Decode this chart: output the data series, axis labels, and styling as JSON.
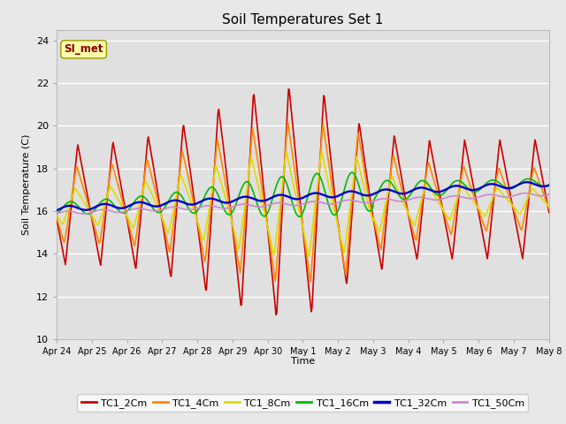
{
  "title": "Soil Temperatures Set 1",
  "xlabel": "Time",
  "ylabel": "Soil Temperature (C)",
  "ylim": [
    10,
    24.5
  ],
  "yticks": [
    10,
    12,
    14,
    16,
    18,
    20,
    22,
    24
  ],
  "x_labels": [
    "Apr 24",
    "Apr 25",
    "Apr 26",
    "Apr 27",
    "Apr 28",
    "Apr 29",
    "Apr 30",
    "May 1",
    "May 2",
    "May 3",
    "May 4",
    "May 5",
    "May 6",
    "May 7",
    "May 8"
  ],
  "annotation": "SI_met",
  "line_colors": {
    "TC1_2Cm": "#cc0000",
    "TC1_4Cm": "#ff8800",
    "TC1_8Cm": "#dddd00",
    "TC1_16Cm": "#00bb00",
    "TC1_32Cm": "#0000cc",
    "TC1_50Cm": "#cc88cc"
  },
  "fig_bg_color": "#e8e8e8",
  "plot_bg_color": "#e0e0e0",
  "grid_color": "#ffffff"
}
